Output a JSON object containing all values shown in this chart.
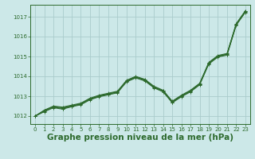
{
  "background_color": "#cce8e8",
  "grid_color": "#aacccc",
  "line_color": "#2d6a2d",
  "xlabel": "Graphe pression niveau de la mer (hPa)",
  "xlabel_fontsize": 7.5,
  "xlim": [
    -0.5,
    23.5
  ],
  "ylim": [
    1011.6,
    1017.6
  ],
  "yticks": [
    1012,
    1013,
    1014,
    1015,
    1016,
    1017
  ],
  "xticks": [
    0,
    1,
    2,
    3,
    4,
    5,
    6,
    7,
    8,
    9,
    10,
    11,
    12,
    13,
    14,
    15,
    16,
    17,
    18,
    19,
    20,
    21,
    22,
    23
  ],
  "series": [
    [
      1012.0,
      1012.3,
      1012.5,
      1012.45,
      1012.55,
      1012.65,
      1012.9,
      1013.05,
      1013.15,
      1013.25,
      1013.8,
      1014.0,
      1013.85,
      1013.5,
      1013.3,
      1012.75,
      1013.05,
      1013.3,
      1013.65,
      1014.7,
      1015.05,
      1015.15,
      1016.65,
      1017.3
    ],
    [
      1012.0,
      1012.28,
      1012.48,
      1012.42,
      1012.52,
      1012.62,
      1012.87,
      1013.02,
      1013.12,
      1013.22,
      1013.77,
      1013.97,
      1013.82,
      1013.47,
      1013.27,
      1012.72,
      1013.02,
      1013.27,
      1013.62,
      1014.67,
      1015.02,
      1015.12,
      1016.62,
      1017.27
    ],
    [
      1012.0,
      1012.25,
      1012.45,
      1012.38,
      1012.5,
      1012.6,
      1012.85,
      1013.0,
      1013.1,
      1013.2,
      1013.75,
      1013.95,
      1013.8,
      1013.45,
      1013.25,
      1012.7,
      1013.0,
      1013.25,
      1013.6,
      1014.65,
      1015.0,
      1015.1,
      1016.6,
      1017.25
    ],
    [
      1012.0,
      1012.22,
      1012.42,
      1012.35,
      1012.47,
      1012.57,
      1012.82,
      1012.97,
      1013.07,
      1013.17,
      1013.72,
      1013.92,
      1013.77,
      1013.42,
      1013.22,
      1012.67,
      1012.97,
      1013.22,
      1013.57,
      1014.62,
      1014.97,
      1015.07,
      1016.57,
      1017.22
    ]
  ],
  "series2": [
    [
      1012.0,
      1012.3,
      1012.5,
      1012.45,
      1012.55,
      1012.65,
      1012.9,
      1013.05,
      1013.15,
      1013.25,
      1013.8,
      1014.0,
      1013.85,
      1013.5,
      1013.3,
      1012.75,
      1013.05,
      1013.3,
      1013.65,
      1014.7,
      1015.05,
      1015.15,
      1016.65,
      1017.3
    ]
  ]
}
